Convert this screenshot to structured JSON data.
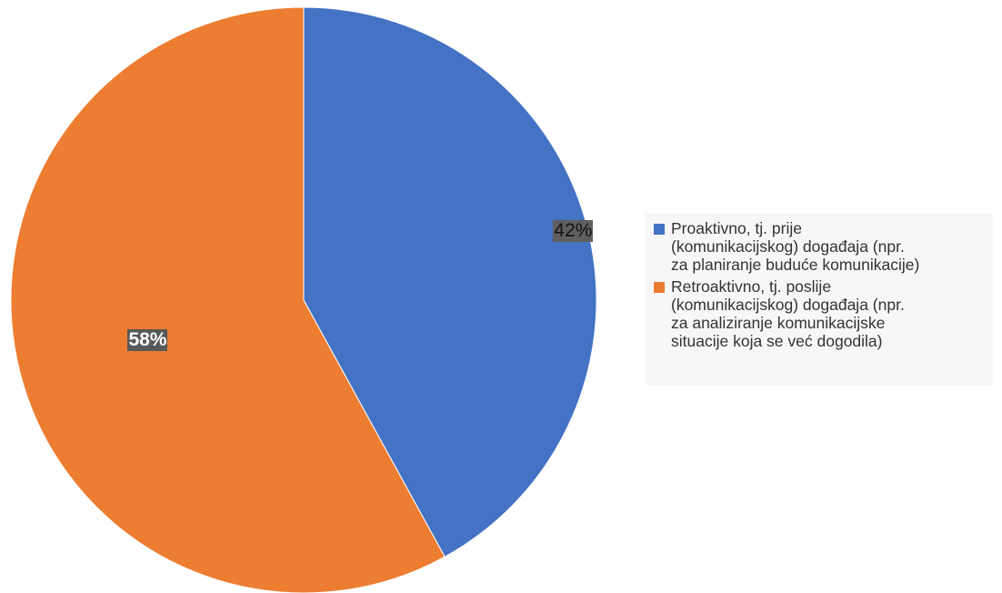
{
  "chart_data": {
    "type": "pie",
    "title": "",
    "slices": [
      {
        "label": "Proaktivno, tj. prije\n(komunikacijskog) događaja (npr.\nza planiranje buduće komunikacije)",
        "value": 42,
        "display": "42%",
        "color": "#4472C4"
      },
      {
        "label": "Retroaktivno, tj. poslije\n(komunikacijskog) događaja (npr.\nza analiziranje komunikacijske\nsituacije koja se već dogodila)",
        "value": 58,
        "display": "58%",
        "color": "#ED7D31"
      }
    ],
    "start_angle": "12 o'clock",
    "direction": "clockwise",
    "legend_position": "right"
  }
}
